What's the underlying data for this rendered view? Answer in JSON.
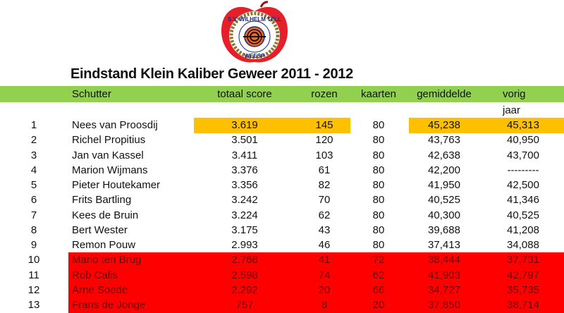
{
  "logo": {
    "text_top": "S.V. WILHELM TELL",
    "text_bottom": "WEESP"
  },
  "title": "Eindstand Klein Kaliber Geweer 2011 - 2012",
  "header": {
    "schutter": "Schutter",
    "totaal_score": "totaal score",
    "rozen": "rozen",
    "kaarten": "kaarten",
    "gemiddelde": "gemiddelde",
    "vorig_jaar": "vorig jaar"
  },
  "colors": {
    "header": "#92d050",
    "highlight": "#ffc000",
    "relegation": "#ff0000"
  },
  "rows": [
    {
      "rank": "1",
      "name": "Nees van Proosdij",
      "score": "3.619",
      "rozen": "145",
      "kaarten": "80",
      "gemiddelde": "45,238",
      "vorig": "45,313",
      "status": "highlight"
    },
    {
      "rank": "2",
      "name": "Richel Propitius",
      "score": "3.501",
      "rozen": "120",
      "kaarten": "80",
      "gemiddelde": "43,763",
      "vorig": "40,950",
      "status": "normal"
    },
    {
      "rank": "3",
      "name": "Jan van Kassel",
      "score": "3.411",
      "rozen": "103",
      "kaarten": "80",
      "gemiddelde": "42,638",
      "vorig": "43,700",
      "status": "normal"
    },
    {
      "rank": "4",
      "name": "Marion Wijmans",
      "score": "3.376",
      "rozen": "61",
      "kaarten": "80",
      "gemiddelde": "42,200",
      "vorig": "---------",
      "status": "normal"
    },
    {
      "rank": "5",
      "name": "Pieter Houtekamer",
      "score": "3.356",
      "rozen": "82",
      "kaarten": "80",
      "gemiddelde": "41,950",
      "vorig": "42,500",
      "status": "normal"
    },
    {
      "rank": "6",
      "name": "Frits Bartling",
      "score": "3.242",
      "rozen": "70",
      "kaarten": "80",
      "gemiddelde": "40,525",
      "vorig": "41,346",
      "status": "normal"
    },
    {
      "rank": "7",
      "name": "Kees de Bruin",
      "score": "3.224",
      "rozen": "62",
      "kaarten": "80",
      "gemiddelde": "40,300",
      "vorig": "40,525",
      "status": "normal"
    },
    {
      "rank": "8",
      "name": "Bert Wester",
      "score": "3.175",
      "rozen": "43",
      "kaarten": "80",
      "gemiddelde": "39,688",
      "vorig": "41,208",
      "status": "normal"
    },
    {
      "rank": "9",
      "name": "Remon Pouw",
      "score": "2.993",
      "rozen": "46",
      "kaarten": "80",
      "gemiddelde": "37,413",
      "vorig": "34,088",
      "status": "normal"
    },
    {
      "rank": "10",
      "name": "Mario ten Brug",
      "score": "2.768",
      "rozen": "41",
      "kaarten": "72",
      "gemiddelde": "38,444",
      "vorig": "37,731",
      "status": "red"
    },
    {
      "rank": "11",
      "name": "Rob Calis",
      "score": "2.598",
      "rozen": "74",
      "kaarten": "62",
      "gemiddelde": "41,903",
      "vorig": "42,797",
      "status": "red"
    },
    {
      "rank": "12",
      "name": "Arne Soede",
      "score": "2.292",
      "rozen": "20",
      "kaarten": "66",
      "gemiddelde": "34,727",
      "vorig": "35,735",
      "status": "red"
    },
    {
      "rank": "13",
      "name": "Frans de Jonge",
      "score": "757",
      "rozen": "8",
      "kaarten": "20",
      "gemiddelde": "37,850",
      "vorig": "38,714",
      "status": "red"
    }
  ]
}
